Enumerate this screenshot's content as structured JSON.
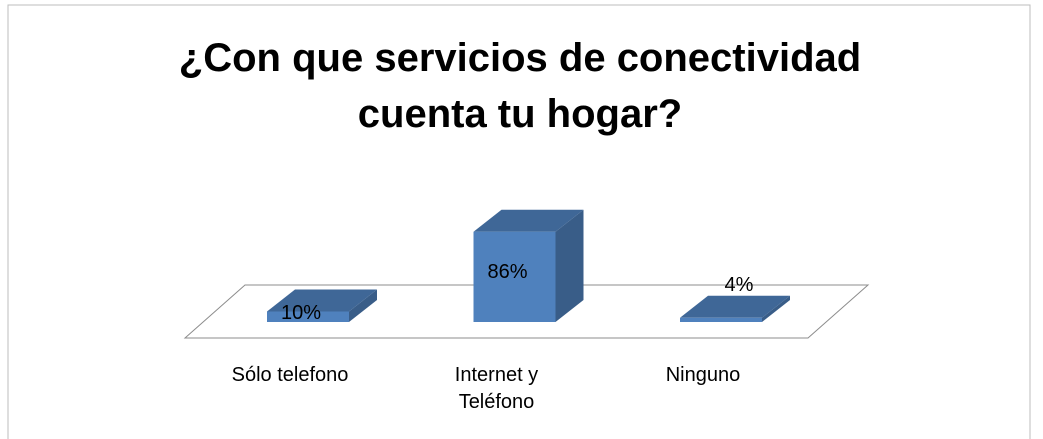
{
  "chart_data": {
    "type": "bar3d",
    "title": "¿Con que servicios de conectividad cuenta tu hogar?",
    "categories": [
      "Sólo telefono",
      "Internet y Teléfono",
      "Ninguno"
    ],
    "values": [
      10,
      86,
      4
    ],
    "value_labels": [
      "10%",
      "86%",
      "4%"
    ],
    "color": "#4f81bd"
  }
}
